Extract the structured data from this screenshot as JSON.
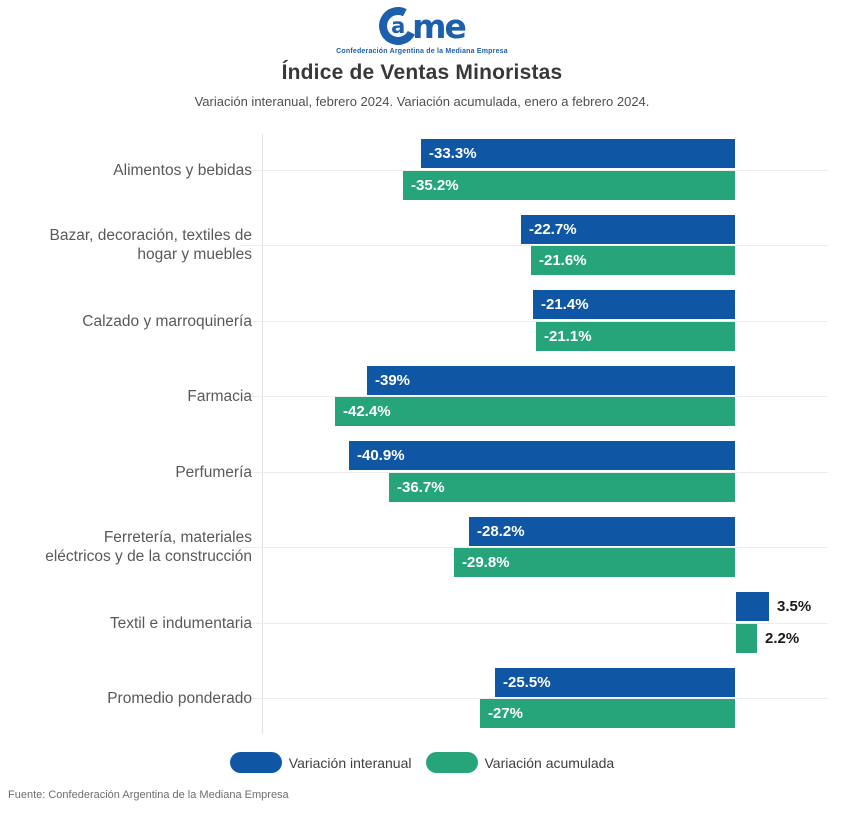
{
  "logo": {
    "brand": "Came",
    "part_a": "a",
    "part_me": "me",
    "tagline": "Confederación Argentina de la Mediana Empresa",
    "color": "#1b5fad"
  },
  "header": {
    "title": "Índice de Ventas Minoristas",
    "subtitle": "Variación interanual, febrero 2024. Variación acumulada, enero a febrero 2024."
  },
  "chart_data": {
    "type": "bar",
    "orientation": "horizontal",
    "grid": true,
    "xlim": [
      -50,
      12
    ],
    "legend_position": "bottom",
    "categories": [
      "Alimentos y bebidas",
      "Bazar, decoración, textiles de hogar y muebles",
      "Calzado y marroquinería",
      "Farmacia",
      "Perfumería",
      "Ferretería, materiales eléctricos y de la construcción",
      "Textil e indumentaria",
      "Promedio ponderado"
    ],
    "category_lines": [
      [
        "Alimentos y bebidas"
      ],
      [
        "Bazar, decoración, textiles de",
        "hogar y muebles"
      ],
      [
        "Calzado y marroquinería"
      ],
      [
        "Farmacia"
      ],
      [
        "Perfumería"
      ],
      [
        "Ferretería, materiales",
        "eléctricos y de la construcción"
      ],
      [
        "Textil e indumentaria"
      ],
      [
        "Promedio ponderado"
      ]
    ],
    "series": [
      {
        "name": "Variación interanual",
        "color": "#0f57a5",
        "values": [
          -33.3,
          -22.7,
          -21.4,
          -39,
          -40.9,
          -28.2,
          3.5,
          -25.5
        ],
        "labels": [
          "-33.3%",
          "-22.7%",
          "-21.4%",
          "-39%",
          "-40.9%",
          "-28.2%",
          "3.5%",
          "-25.5%"
        ]
      },
      {
        "name": "Variación acumulada",
        "color": "#26a57a",
        "values": [
          -35.2,
          -21.6,
          -21.1,
          -42.4,
          -36.7,
          -29.8,
          2.2,
          -27
        ],
        "labels": [
          "-35.2%",
          "-21.6%",
          "-21.1%",
          "-42.4%",
          "-36.7%",
          "-29.8%",
          "2.2%",
          "-27%"
        ]
      }
    ]
  },
  "footer": {
    "source": "Fuente: Confederación Argentina de la Mediana Empresa"
  }
}
